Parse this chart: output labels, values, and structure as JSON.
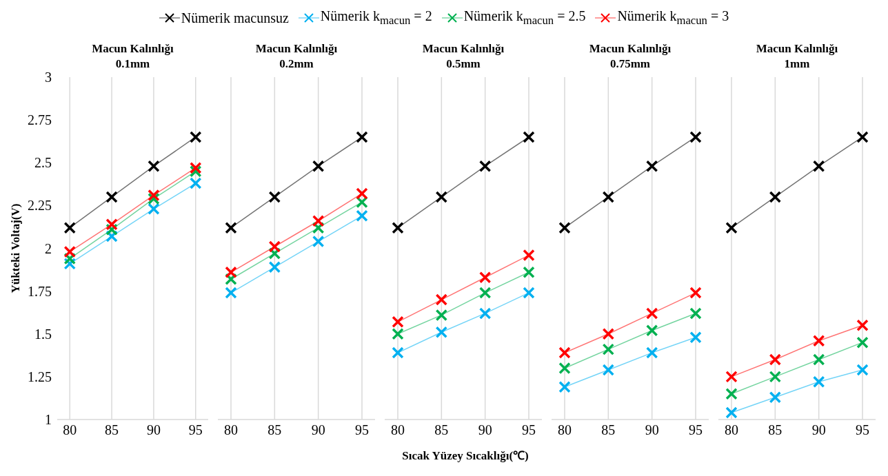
{
  "chart_data": [
    {
      "type": "line",
      "title": "Macun Kalınlığı 0.1mm",
      "ylabel": "Yükteki Voltaj(V)",
      "x": [
        80,
        85,
        90,
        95
      ],
      "xlim": [
        78.5,
        96.5
      ],
      "xticks": [
        80,
        85,
        90,
        95
      ],
      "ylim": [
        1,
        3
      ],
      "yticks": [
        1,
        1.25,
        1.5,
        1.75,
        2,
        2.25,
        2.5,
        2.75,
        3
      ],
      "grid": "x",
      "marker": "cross",
      "legend": "top",
      "series": [
        {
          "name": "Nümerik macunsuz",
          "color": "#000000",
          "values": [
            2.12,
            2.3,
            2.48,
            2.65
          ]
        },
        {
          "name": "Nümerik k$_{macun}$ = 2",
          "color": "#00b0f0",
          "values": [
            1.91,
            2.07,
            2.23,
            2.38
          ]
        },
        {
          "name": "Nümerik k$_{macun}$ = 2.5",
          "color": "#00b050",
          "values": [
            1.94,
            2.11,
            2.29,
            2.45
          ]
        },
        {
          "name": "Nümerik k$_{macun}$ = 3",
          "color": "#ff0000",
          "values": [
            1.98,
            2.14,
            2.31,
            2.47
          ]
        }
      ]
    },
    {
      "type": "line",
      "title": "Macun Kalınlığı 0.2mm",
      "x": [
        80,
        85,
        90,
        95
      ],
      "xlim": [
        78.5,
        96.5
      ],
      "xticks": [
        80,
        85,
        90,
        95
      ],
      "ylim": [
        1,
        3
      ],
      "yticks": [
        1,
        1.25,
        1.5,
        1.75,
        2,
        2.25,
        2.5,
        2.75,
        3
      ],
      "grid": "x",
      "marker": "cross",
      "tick_labels": "x",
      "series": [
        {
          "color": "#000000",
          "values": [
            2.12,
            2.3,
            2.48,
            2.65
          ]
        },
        {
          "color": "#00b0f0",
          "values": [
            1.74,
            1.89,
            2.04,
            2.19
          ]
        },
        {
          "color": "#00b050",
          "values": [
            1.82,
            1.97,
            2.12,
            2.27
          ]
        },
        {
          "color": "#ff0000",
          "values": [
            1.86,
            2.01,
            2.16,
            2.32
          ]
        }
      ]
    },
    {
      "type": "line",
      "title": "Macun Kalınlığı 0.5mm",
      "xlabel": "Sıcak Yüzey Sıcaklığı(℃)",
      "x": [
        80,
        85,
        90,
        95
      ],
      "xlim": [
        78.5,
        96.5
      ],
      "xticks": [
        80,
        85,
        90,
        95
      ],
      "ylim": [
        1,
        3
      ],
      "yticks": [
        1,
        1.25,
        1.5,
        1.75,
        2,
        2.25,
        2.5,
        2.75,
        3
      ],
      "grid": "x",
      "marker": "cross",
      "tick_labels": "x",
      "series": [
        {
          "color": "#000000",
          "values": [
            2.12,
            2.3,
            2.48,
            2.65
          ]
        },
        {
          "color": "#00b0f0",
          "values": [
            1.39,
            1.51,
            1.62,
            1.74
          ]
        },
        {
          "color": "#00b050",
          "values": [
            1.5,
            1.61,
            1.74,
            1.86
          ]
        },
        {
          "color": "#ff0000",
          "values": [
            1.57,
            1.7,
            1.83,
            1.96
          ]
        }
      ]
    },
    {
      "type": "line",
      "title": "Macun Kalınlığı 0.75mm",
      "x": [
        80,
        85,
        90,
        95
      ],
      "xlim": [
        78.5,
        96.5
      ],
      "xticks": [
        80,
        85,
        90,
        95
      ],
      "ylim": [
        1,
        3
      ],
      "yticks": [
        1,
        1.25,
        1.5,
        1.75,
        2,
        2.25,
        2.5,
        2.75,
        3
      ],
      "grid": "x",
      "marker": "cross",
      "tick_labels": "x",
      "series": [
        {
          "color": "#000000",
          "values": [
            2.12,
            2.3,
            2.48,
            2.65
          ]
        },
        {
          "color": "#00b0f0",
          "values": [
            1.19,
            1.29,
            1.39,
            1.48
          ]
        },
        {
          "color": "#00b050",
          "values": [
            1.3,
            1.41,
            1.52,
            1.62
          ]
        },
        {
          "color": "#ff0000",
          "values": [
            1.39,
            1.5,
            1.62,
            1.74
          ]
        }
      ]
    },
    {
      "type": "line",
      "title": "Macun Kalınlığı 1mm",
      "x": [
        80,
        85,
        90,
        95
      ],
      "xlim": [
        78.5,
        96.5
      ],
      "xticks": [
        80,
        85,
        90,
        95
      ],
      "ylim": [
        1,
        3
      ],
      "yticks": [
        1,
        1.25,
        1.5,
        1.75,
        2,
        2.25,
        2.5,
        2.75,
        3
      ],
      "grid": "x",
      "marker": "cross",
      "tick_labels": "x",
      "series": [
        {
          "color": "#000000",
          "values": [
            2.12,
            2.3,
            2.48,
            2.65
          ]
        },
        {
          "color": "#00b0f0",
          "values": [
            1.04,
            1.13,
            1.22,
            1.29
          ]
        },
        {
          "color": "#00b050",
          "values": [
            1.15,
            1.25,
            1.35,
            1.45
          ]
        },
        {
          "color": "#ff0000",
          "values": [
            1.25,
            1.35,
            1.46,
            1.55
          ]
        }
      ]
    }
  ]
}
